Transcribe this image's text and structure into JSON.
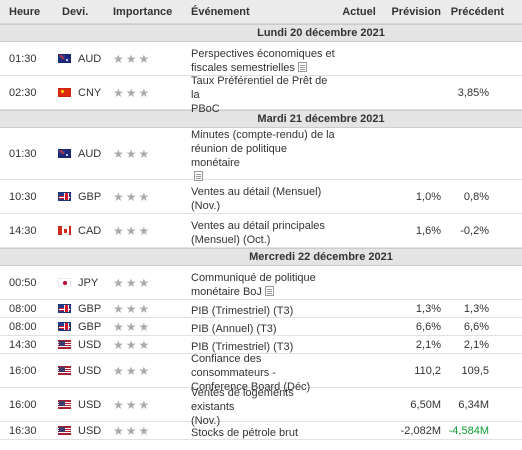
{
  "header": {
    "time": "Heure",
    "currency": "Devi.",
    "importance": "Importance",
    "event": "Événement",
    "actual": "Actuel",
    "forecast": "Prévision",
    "previous": "Précédent"
  },
  "icons": {
    "importance": "star-icon",
    "document": "document-icon"
  },
  "colors": {
    "header_bg": "#ebebeb",
    "day_bg": "#e4e4e4",
    "star": "#aaaaaa",
    "negative_highlight": "#0b9c31"
  },
  "days": [
    {
      "label": "Lundi 20 décembre 2021",
      "events": [
        {
          "time": "01:30",
          "flag": "flag-aud",
          "currency": "AUD",
          "importance": 1,
          "event_lines": [
            "Perspectives économiques et",
            "fiscales semestrielles"
          ],
          "doc": true,
          "actual": "",
          "forecast": "",
          "previous": "",
          "previous_class": "val-plain",
          "height": 34
        },
        {
          "time": "02:30",
          "flag": "flag-cny",
          "currency": "CNY",
          "importance": 1,
          "event_lines": [
            "Taux Préférentiel de Prêt de la",
            "PBoC"
          ],
          "doc": false,
          "actual": "",
          "forecast": "",
          "previous": "3,85%",
          "previous_class": "val-plain",
          "height": 34
        }
      ]
    },
    {
      "label": "Mardi 21 décembre 2021",
      "events": [
        {
          "time": "01:30",
          "flag": "flag-aud",
          "currency": "AUD",
          "importance": 1,
          "event_lines": [
            "Minutes (compte-rendu) de la",
            "réunion de politique monétaire"
          ],
          "doc": true,
          "doc_newline": true,
          "actual": "",
          "forecast": "",
          "previous": "",
          "previous_class": "val-plain",
          "height": 52
        },
        {
          "time": "10:30",
          "flag": "flag-gbp",
          "currency": "GBP",
          "importance": 1,
          "event_lines": [
            "Ventes au détail (Mensuel)",
            "(Nov.)"
          ],
          "doc": false,
          "actual": "",
          "forecast": "1,0%",
          "previous": "0,8%",
          "previous_class": "val-plain",
          "height": 34
        },
        {
          "time": "14:30",
          "flag": "flag-cad",
          "currency": "CAD",
          "importance": 1,
          "event_lines": [
            "Ventes au détail principales",
            "(Mensuel) (Oct.)"
          ],
          "doc": false,
          "actual": "",
          "forecast": "1,6%",
          "previous": "-0,2%",
          "previous_class": "val-plain",
          "height": 34
        }
      ]
    },
    {
      "label": "Mercredi 22 décembre 2021",
      "events": [
        {
          "time": "00:50",
          "flag": "flag-jpy",
          "currency": "JPY",
          "importance": 1,
          "event_lines": [
            "Communiqué de politique",
            "monétaire BoJ"
          ],
          "doc": true,
          "actual": "",
          "forecast": "",
          "previous": "",
          "previous_class": "val-plain",
          "height": 34
        },
        {
          "time": "08:00",
          "flag": "flag-gbp",
          "currency": "GBP",
          "importance": 1,
          "event_lines": [
            "PIB (Trimestriel) (T3)"
          ],
          "doc": false,
          "actual": "",
          "forecast": "1,3%",
          "previous": "1,3%",
          "previous_class": "val-plain",
          "height": 18
        },
        {
          "time": "08:00",
          "flag": "flag-gbp",
          "currency": "GBP",
          "importance": 1,
          "event_lines": [
            "PIB (Annuel) (T3)"
          ],
          "doc": false,
          "actual": "",
          "forecast": "6,6%",
          "previous": "6,6%",
          "previous_class": "val-plain",
          "height": 18
        },
        {
          "time": "14:30",
          "flag": "flag-usd",
          "currency": "USD",
          "importance": 1,
          "event_lines": [
            "PIB (Trimestriel) (T3)"
          ],
          "doc": false,
          "actual": "",
          "forecast": "2,1%",
          "previous": "2,1%",
          "previous_class": "val-plain",
          "height": 18
        },
        {
          "time": "16:00",
          "flag": "flag-usd",
          "currency": "USD",
          "importance": 1,
          "event_lines": [
            "Confiance des consommateurs -",
            "Conference Board (Déc)"
          ],
          "doc": false,
          "actual": "",
          "forecast": "110,2",
          "previous": "109,5",
          "previous_class": "val-plain",
          "height": 34
        },
        {
          "time": "16:00",
          "flag": "flag-usd",
          "currency": "USD",
          "importance": 1,
          "event_lines": [
            "Ventes de logements existants",
            "(Nov.)"
          ],
          "doc": false,
          "actual": "",
          "forecast": "6,50M",
          "previous": "6,34M",
          "previous_class": "val-plain",
          "height": 34
        },
        {
          "time": "16:30",
          "flag": "flag-usd",
          "currency": "USD",
          "importance": 1,
          "event_lines": [
            "Stocks de pétrole brut"
          ],
          "doc": false,
          "actual": "",
          "forecast": "-2,082M",
          "previous": "-4,584M",
          "previous_class": "val-neg",
          "height": 18
        }
      ]
    }
  ]
}
